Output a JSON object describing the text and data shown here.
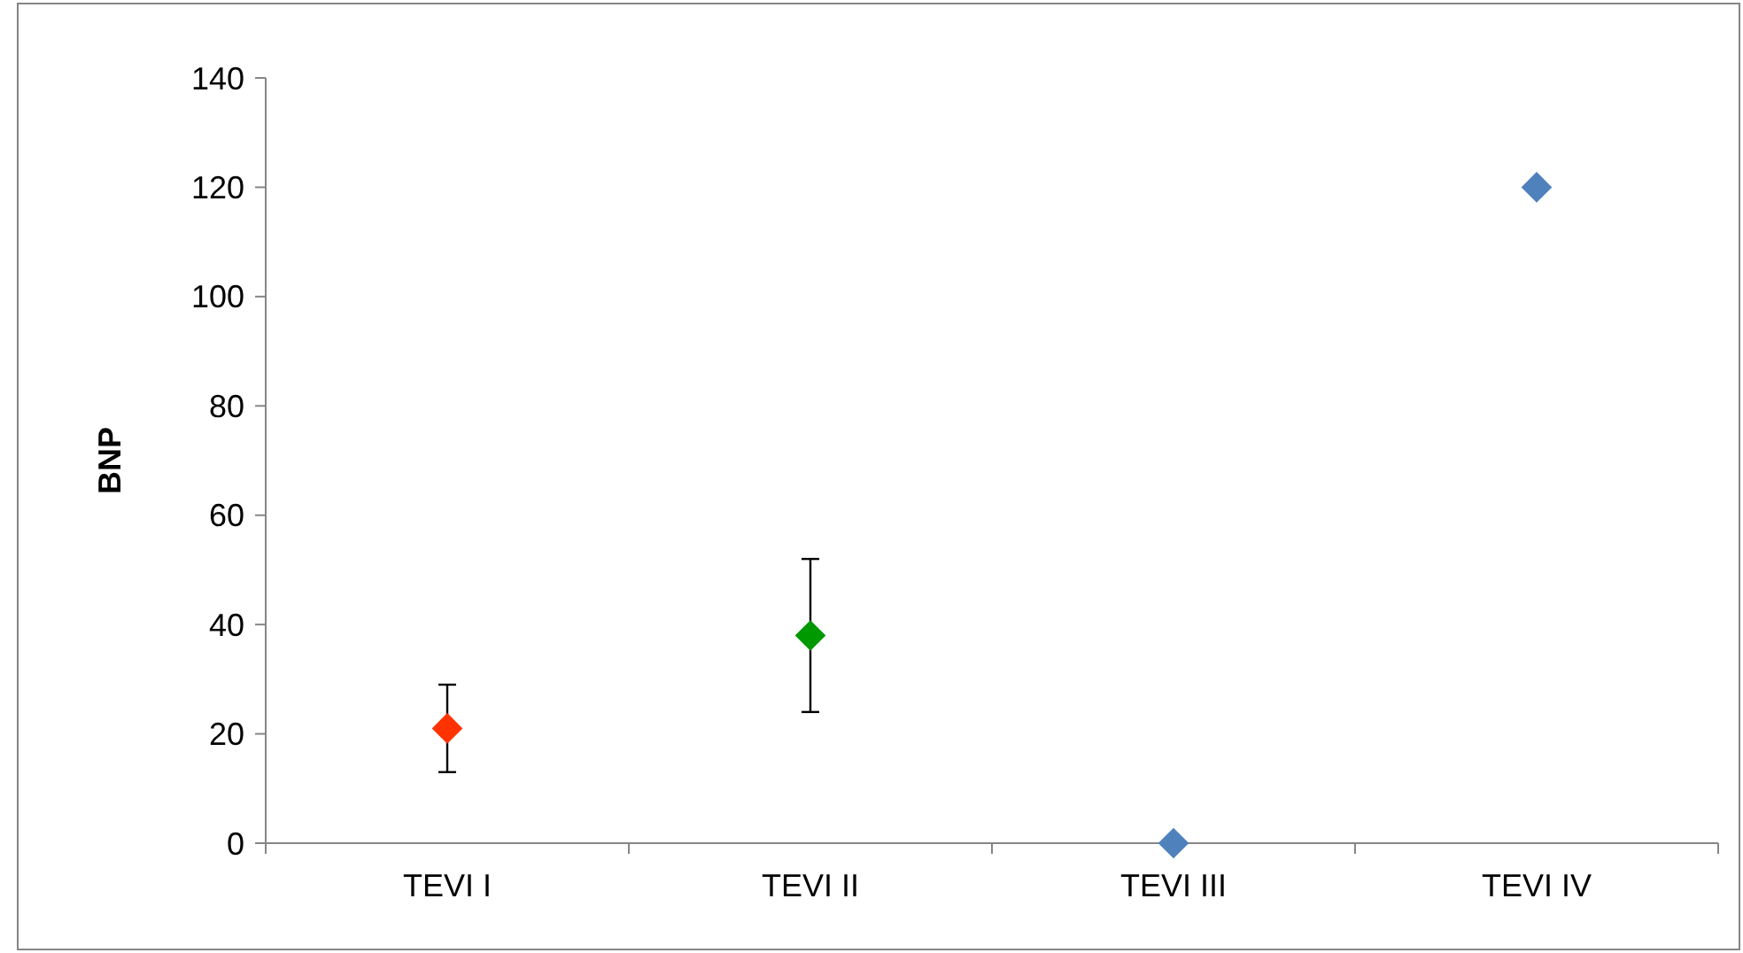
{
  "chart_data": {
    "type": "scatter",
    "ylabel": "BNP",
    "categories": [
      "TEVI I",
      "TEVI II",
      "TEVI III",
      "TEVI IV"
    ],
    "values": [
      21,
      38,
      0,
      120
    ],
    "colors": [
      "#ff3300",
      "#009900",
      "#4f81bd",
      "#4f81bd"
    ],
    "errors": [
      [
        13,
        29
      ],
      [
        24,
        52
      ],
      null,
      null
    ],
    "ylim": [
      0,
      140
    ],
    "yticks": [
      0,
      20,
      40,
      60,
      80,
      100,
      120,
      140
    ],
    "grid": false,
    "marker": "diamond"
  }
}
